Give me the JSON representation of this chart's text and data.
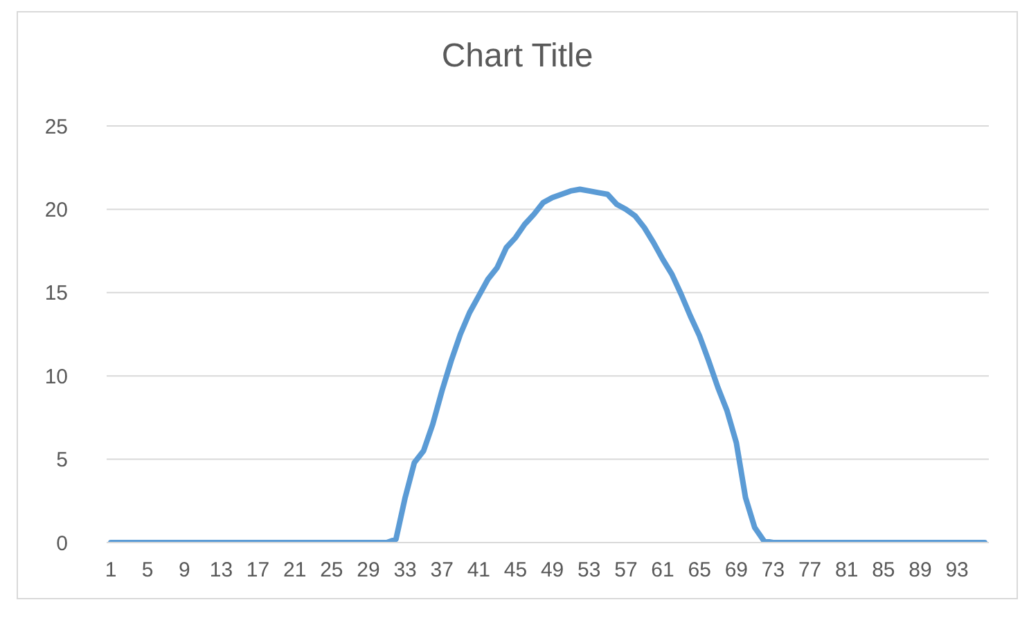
{
  "chart_data": {
    "type": "line",
    "title": "Chart Title",
    "categories": [
      "1",
      null,
      null,
      null,
      "5",
      null,
      null,
      null,
      "9",
      null,
      null,
      null,
      "13",
      null,
      null,
      null,
      "17",
      null,
      null,
      null,
      "21",
      null,
      null,
      null,
      "25",
      null,
      null,
      null,
      "29",
      null,
      null,
      null,
      "33",
      null,
      null,
      null,
      "37",
      null,
      null,
      null,
      "41",
      null,
      null,
      null,
      "45",
      null,
      null,
      null,
      "49",
      null,
      null,
      null,
      "53",
      null,
      null,
      null,
      "57",
      null,
      null,
      null,
      "61",
      null,
      null,
      null,
      "65",
      null,
      null,
      null,
      "69",
      null,
      null,
      null,
      "73",
      null,
      null,
      null,
      "77",
      null,
      null,
      null,
      "81",
      null,
      null,
      null,
      "85",
      null,
      null,
      null,
      "89",
      null,
      null,
      null,
      "93",
      null,
      null,
      null
    ],
    "series": [
      {
        "color": "#5b9bd5",
        "values": [
          0,
          0,
          0,
          0,
          0,
          0,
          0,
          0,
          0,
          0,
          0,
          0,
          0,
          0,
          0,
          0,
          0,
          0,
          0,
          0,
          0,
          0,
          0,
          0,
          0,
          0,
          0,
          0,
          0,
          0,
          0,
          0.2,
          2.7,
          4.8,
          5.5,
          7.1,
          9.1,
          10.9,
          12.5,
          13.8,
          14.8,
          15.8,
          16.5,
          17.7,
          18.3,
          19.1,
          19.7,
          20.4,
          20.7,
          20.9,
          21.1,
          21.2,
          21.1,
          21.0,
          20.9,
          20.3,
          20.0,
          19.6,
          18.9,
          18.0,
          17.0,
          16.1,
          14.9,
          13.6,
          12.4,
          10.9,
          9.3,
          7.9,
          6.0,
          2.7,
          0.9,
          0.1,
          0,
          0,
          0,
          0,
          0,
          0,
          0,
          0,
          0,
          0,
          0,
          0,
          0,
          0,
          0,
          0,
          0,
          0,
          0,
          0,
          0,
          0,
          0,
          0
        ]
      }
    ],
    "ylim": [
      0,
      25
    ],
    "yticks": [
      0,
      5,
      10,
      15,
      20,
      25
    ],
    "grid": "y",
    "legend": false,
    "marker": "none",
    "line_style": "solid"
  }
}
